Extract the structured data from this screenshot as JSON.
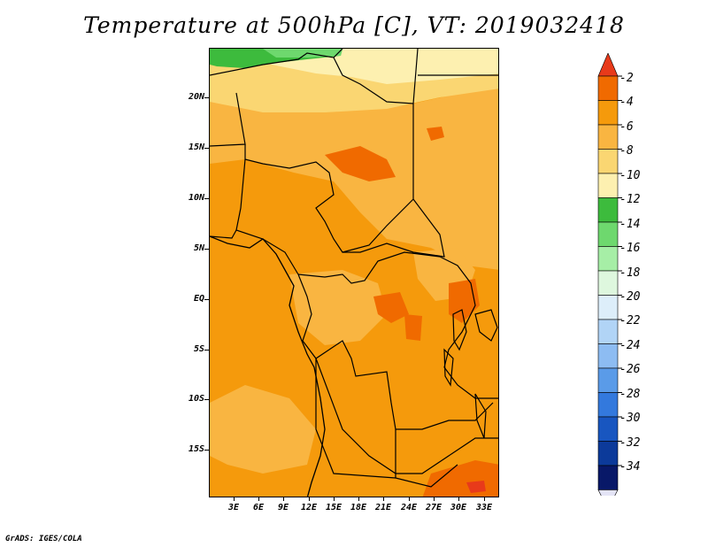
{
  "title": "Temperature at 500hPa [C], VT: 2019032418",
  "credit": "GrADS: IGES/COLA",
  "lat_labels": [
    "20N",
    "15N",
    "10N",
    "5N",
    "EQ",
    "5S",
    "10S",
    "15S"
  ],
  "lon_labels": [
    "3E",
    "6E",
    "9E",
    "12E",
    "15E",
    "18E",
    "21E",
    "24E",
    "27E",
    "30E",
    "33E"
  ],
  "colorbar": {
    "labels": [
      "-2",
      "-4",
      "-6",
      "-8",
      "-10",
      "-12",
      "-14",
      "-16",
      "-18",
      "-20",
      "-22",
      "-24",
      "-26",
      "-28",
      "-30",
      "-32",
      "-34"
    ],
    "colors": [
      "#e83a1a",
      "#f06a00",
      "#f59a0c",
      "#f9b541",
      "#fad672",
      "#fdf0b0",
      "#3dbb3d",
      "#6ed86e",
      "#a6eea6",
      "#def7de",
      "#ddeefa",
      "#b1d4f6",
      "#8dbcf2",
      "#5a9be8",
      "#3379dd",
      "#1856c0",
      "#0c3a9a",
      "#081868",
      "#e4e4f6"
    ]
  }
}
